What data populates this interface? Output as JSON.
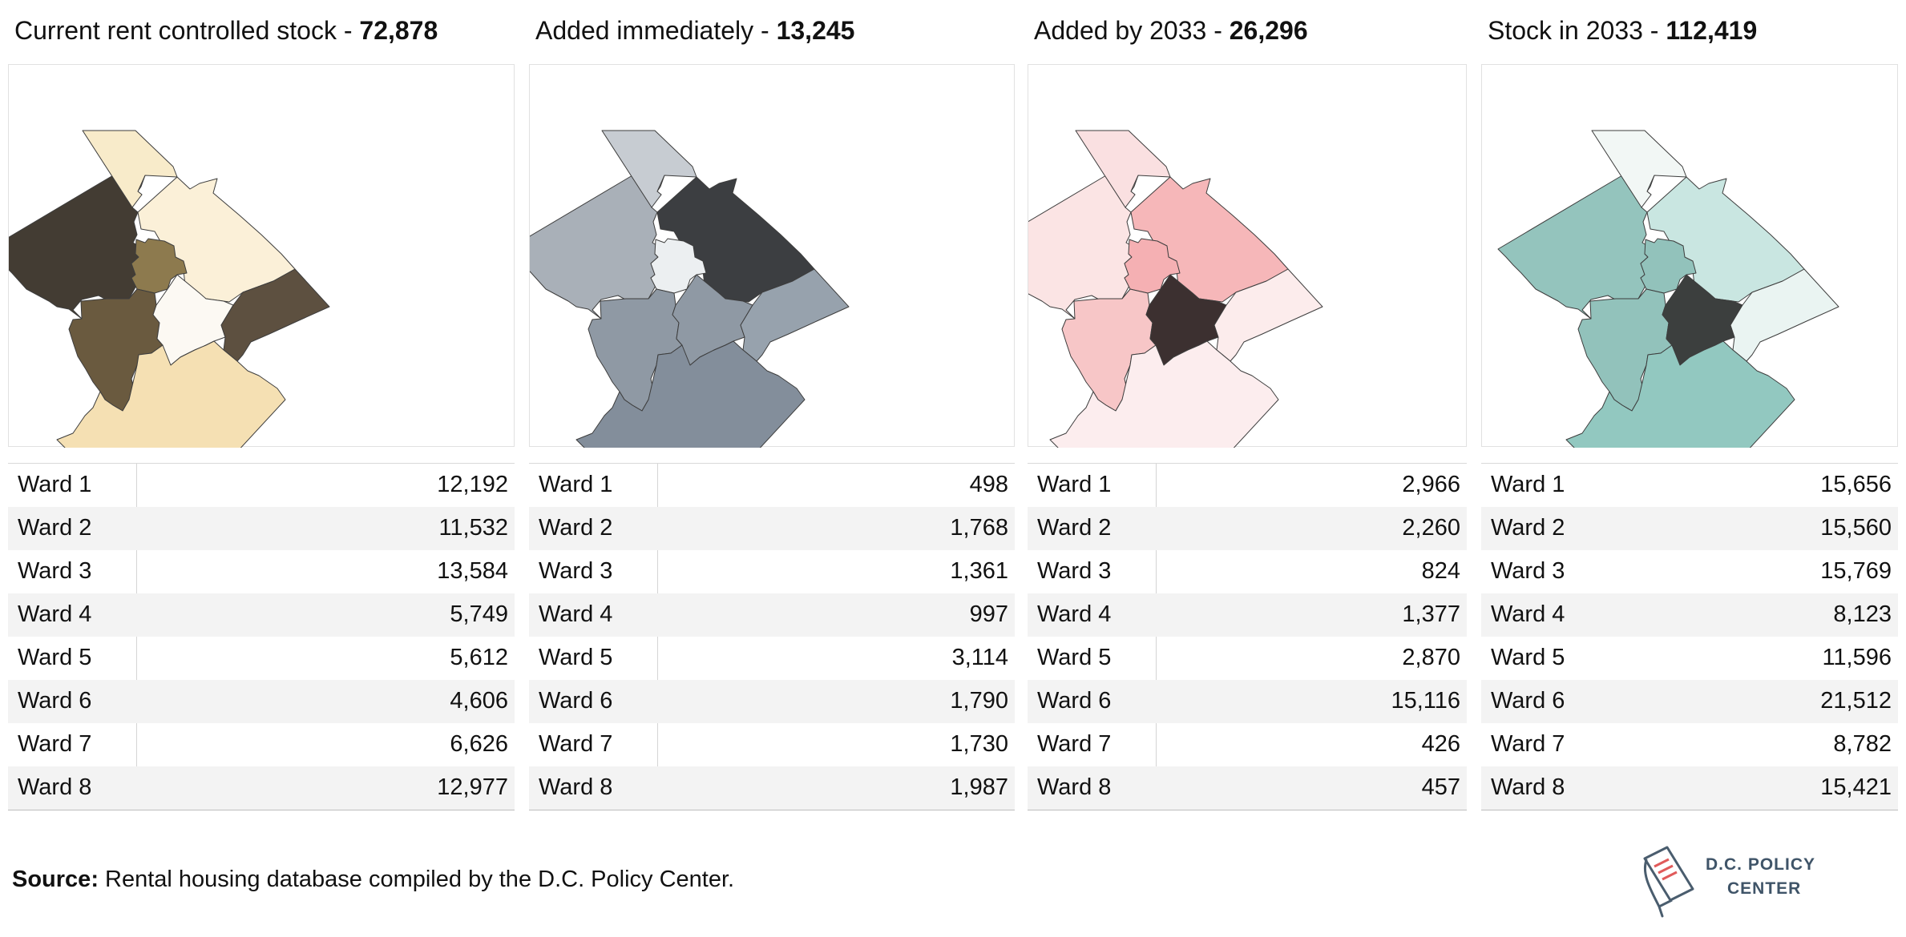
{
  "panels": [
    {
      "title_prefix": "Current rent controlled stock - ",
      "title_value": "72,878",
      "colors": [
        "#433c33",
        "#f8ebca",
        "#fbf0d8",
        "#8d7a4e",
        "#6a5a3f",
        "#fcf9f3",
        "#5d5040",
        "#f5e0b3"
      ],
      "rows": [
        {
          "label": "Ward 1",
          "value": "12,192"
        },
        {
          "label": "Ward 2",
          "value": "11,532"
        },
        {
          "label": "Ward 3",
          "value": "13,584"
        },
        {
          "label": "Ward 4",
          "value": "5,749"
        },
        {
          "label": "Ward 5",
          "value": "5,612"
        },
        {
          "label": "Ward 6",
          "value": "4,606"
        },
        {
          "label": "Ward 7",
          "value": "6,626"
        },
        {
          "label": "Ward 8",
          "value": "12,977"
        }
      ]
    },
    {
      "title_prefix": "Added immediately - ",
      "title_value": "13,245",
      "colors": [
        "#a9b0b8",
        "#c7ccd2",
        "#3c3e41",
        "#eceff1",
        "#8f99a4",
        "#8f99a4",
        "#97a2ad",
        "#838e9b"
      ],
      "rows": [
        {
          "label": "Ward 1",
          "value": "498"
        },
        {
          "label": "Ward 2",
          "value": "1,768"
        },
        {
          "label": "Ward 3",
          "value": "1,361"
        },
        {
          "label": "Ward 4",
          "value": "997"
        },
        {
          "label": "Ward 5",
          "value": "3,114"
        },
        {
          "label": "Ward 6",
          "value": "1,790"
        },
        {
          "label": "Ward 7",
          "value": "1,730"
        },
        {
          "label": "Ward 8",
          "value": "1,987"
        }
      ]
    },
    {
      "title_prefix": "Added by 2033 - ",
      "title_value": "26,296",
      "colors": [
        "#fbe4e4",
        "#fae0e1",
        "#f6b7b9",
        "#f5b0b3",
        "#f7c6c7",
        "#3c3030",
        "#fcecec",
        "#fcedee"
      ],
      "rows": [
        {
          "label": "Ward 1",
          "value": "2,966"
        },
        {
          "label": "Ward 2",
          "value": "2,260"
        },
        {
          "label": "Ward 3",
          "value": "824"
        },
        {
          "label": "Ward 4",
          "value": "1,377"
        },
        {
          "label": "Ward 5",
          "value": "2,870"
        },
        {
          "label": "Ward 6",
          "value": "15,116"
        },
        {
          "label": "Ward 7",
          "value": "426"
        },
        {
          "label": "Ward 8",
          "value": "457"
        }
      ]
    },
    {
      "title_prefix": "Stock in 2033 - ",
      "title_value": "112,419",
      "colors": [
        "#94c4bd",
        "#f2f7f5",
        "#c9e6e1",
        "#92c2bb",
        "#92c2bb",
        "#3c3f3e",
        "#eaf4f2",
        "#92c8c0"
      ],
      "rows": [
        {
          "label": "Ward 1",
          "value": "15,656"
        },
        {
          "label": "Ward 2",
          "value": "15,560"
        },
        {
          "label": "Ward 3",
          "value": "15,769"
        },
        {
          "label": "Ward 4",
          "value": "8,123"
        },
        {
          "label": "Ward 5",
          "value": "11,596"
        },
        {
          "label": "Ward 6",
          "value": "21,512"
        },
        {
          "label": "Ward 7",
          "value": "8,782"
        },
        {
          "label": "Ward 8",
          "value": "15,421"
        }
      ]
    }
  ],
  "source": {
    "prefix": "Source:",
    "text": " Rental housing database compiled by the D.C. Policy Center."
  },
  "logo": {
    "line1": "D.C. POLICY",
    "line2": "CENTER",
    "icon": "document-pen-icon"
  }
}
